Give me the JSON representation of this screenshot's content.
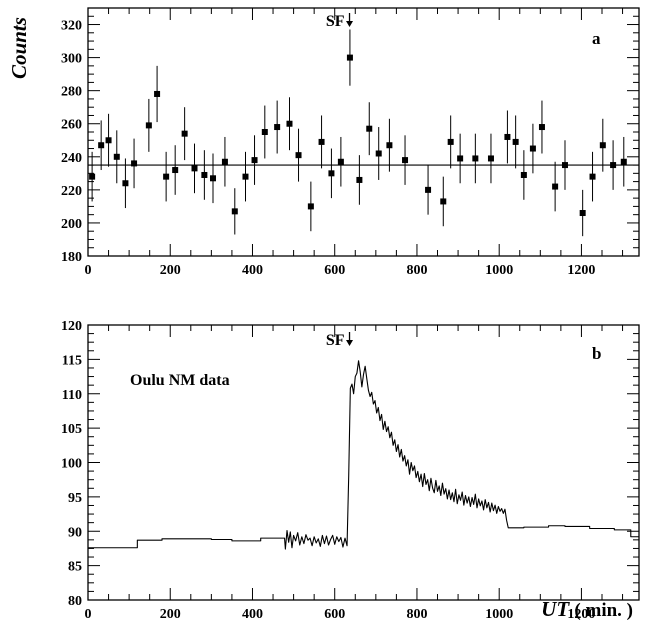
{
  "chart_data": [
    {
      "panel": "a",
      "type": "scatter",
      "title": "",
      "xlabel": "",
      "ylabel": "Counts",
      "xlim": [
        0,
        1340
      ],
      "ylim": [
        180,
        330
      ],
      "xticks": [
        0,
        200,
        400,
        600,
        800,
        1000,
        1200
      ],
      "yticks": [
        180,
        200,
        220,
        240,
        260,
        280,
        300,
        320
      ],
      "xtick_labels": [
        "0",
        "200",
        "400",
        "600",
        "800",
        "1000",
        "1200"
      ],
      "ytick_labels": [
        "180",
        "200",
        "220",
        "240",
        "260",
        "280",
        "300",
        "320"
      ],
      "panel_label": "a",
      "annotation": {
        "text": "SF",
        "x": 636
      },
      "mean_line": 235,
      "grid": false,
      "series": [
        {
          "marker": "square",
          "x": [
            10,
            32,
            50,
            70,
            91,
            112,
            148,
            168,
            190,
            212,
            235,
            259,
            283,
            304,
            333,
            357,
            383,
            405,
            430,
            460,
            490,
            512,
            542,
            568,
            592,
            615,
            637,
            660,
            684,
            707,
            733,
            771,
            827,
            864,
            882,
            905,
            942,
            980,
            1020,
            1040,
            1060,
            1082,
            1104,
            1136,
            1160,
            1203,
            1227,
            1252,
            1277,
            1303
          ],
          "y": [
            228,
            247,
            250,
            240,
            224,
            236,
            259,
            278,
            228,
            232,
            254,
            233,
            229,
            227,
            237,
            207,
            228,
            238,
            255,
            258,
            260,
            241,
            210,
            249,
            230,
            237,
            300,
            226,
            257,
            242,
            247,
            238,
            220,
            213,
            249,
            239,
            239,
            239,
            252,
            249,
            229,
            245,
            258,
            222,
            235,
            206,
            228,
            247,
            235,
            237
          ],
          "err": [
            15,
            15,
            16,
            16,
            15,
            15,
            16,
            17,
            15,
            15,
            16,
            15,
            15,
            15,
            15,
            14,
            15,
            15,
            16,
            16,
            16,
            16,
            15,
            16,
            15,
            15,
            17,
            15,
            16,
            16,
            16,
            15,
            15,
            15,
            16,
            15,
            15,
            15,
            16,
            16,
            15,
            15,
            16,
            15,
            15,
            14,
            15,
            16,
            15,
            15
          ]
        }
      ]
    },
    {
      "panel": "b",
      "type": "line",
      "title": "",
      "xlabel": "UT ( min. )",
      "xlabel_italic": "UT",
      "xlabel_rest": "( min. )",
      "ylabel": "",
      "xlim": [
        0,
        1340
      ],
      "ylim": [
        80,
        120
      ],
      "xticks": [
        0,
        200,
        400,
        600,
        800,
        1000,
        1200
      ],
      "yticks": [
        80,
        85,
        90,
        95,
        100,
        105,
        110,
        115,
        120
      ],
      "xtick_labels": [
        "0",
        "200",
        "400",
        "600",
        "800",
        "1000",
        "1200"
      ],
      "ytick_labels": [
        "80",
        "85",
        "90",
        "95",
        "100",
        "105",
        "110",
        "115",
        "120"
      ],
      "panel_label": "b",
      "text_label": "Oulu NM data",
      "annotation": {
        "text": "SF",
        "x": 636
      },
      "grid": false,
      "series": [
        {
          "x": [
            0,
            120,
            120,
            180,
            180,
            300,
            300,
            350,
            350,
            420,
            420,
            478,
            480,
            484,
            488,
            492,
            496,
            500,
            505,
            510,
            515,
            520,
            525,
            530,
            535,
            540,
            545,
            550,
            555,
            560,
            565,
            570,
            575,
            580,
            585,
            590,
            595,
            600,
            605,
            610,
            615,
            620,
            625,
            630,
            634,
            638,
            642,
            646,
            650,
            654,
            658,
            662,
            666,
            670,
            674,
            678,
            682,
            686,
            690,
            694,
            698,
            702,
            706,
            710,
            714,
            718,
            722,
            726,
            730,
            734,
            738,
            742,
            746,
            750,
            754,
            758,
            762,
            766,
            770,
            774,
            778,
            782,
            786,
            790,
            794,
            798,
            802,
            806,
            810,
            814,
            818,
            822,
            826,
            830,
            834,
            838,
            842,
            846,
            850,
            854,
            858,
            862,
            866,
            870,
            874,
            878,
            882,
            886,
            890,
            894,
            898,
            902,
            906,
            910,
            914,
            918,
            922,
            926,
            930,
            934,
            938,
            942,
            946,
            950,
            954,
            958,
            962,
            966,
            970,
            974,
            978,
            982,
            986,
            990,
            994,
            998,
            1002,
            1006,
            1010,
            1014,
            1018,
            1022,
            1060,
            1060,
            1120,
            1120,
            1160,
            1160,
            1220,
            1220,
            1280,
            1280,
            1320,
            1320,
            1340
          ],
          "y": [
            87.6,
            87.6,
            88.7,
            88.7,
            88.9,
            88.9,
            88.8,
            88.8,
            88.6,
            88.6,
            89.0,
            89.0,
            87.4,
            90.1,
            88.4,
            89.9,
            87.6,
            89.4,
            88.6,
            89.8,
            88.0,
            89.2,
            88.2,
            89.5,
            88.7,
            89.0,
            87.9,
            89.2,
            88.3,
            88.9,
            87.8,
            89.4,
            88.2,
            89.3,
            88.0,
            88.8,
            89.4,
            88.1,
            89.2,
            88.5,
            89.1,
            87.7,
            89.0,
            87.9,
            98.0,
            110.8,
            111.4,
            110.0,
            112.5,
            113.0,
            114.8,
            113.2,
            111.0,
            112.8,
            114.0,
            112.2,
            110.5,
            109.6,
            110.2,
            108.5,
            109.0,
            107.2,
            108.0,
            106.1,
            107.0,
            104.8,
            106.0,
            104.5,
            105.2,
            103.6,
            104.4,
            102.5,
            103.3,
            101.6,
            102.6,
            100.8,
            101.9,
            100.2,
            101.0,
            99.5,
            100.4,
            98.3,
            100.0,
            98.8,
            99.5,
            97.8,
            98.7,
            97.2,
            98.3,
            96.5,
            98.4,
            96.8,
            97.5,
            95.9,
            97.7,
            96.3,
            95.6,
            97.4,
            95.8,
            96.6,
            95.2,
            97.0,
            95.4,
            96.2,
            94.7,
            96.0,
            94.6,
            95.6,
            94.3,
            96.1,
            94.0,
            95.3,
            94.5,
            95.7,
            93.8,
            95.2,
            94.1,
            95.0,
            93.6,
            94.9,
            93.9,
            95.4,
            93.4,
            94.7,
            93.7,
            94.4,
            93.1,
            94.6,
            93.4,
            94.2,
            92.8,
            94.1,
            93.0,
            93.8,
            92.6,
            93.6,
            92.9,
            93.3,
            92.6,
            93.2,
            91.6,
            90.5,
            90.5,
            90.6,
            90.6,
            90.8,
            90.8,
            90.7,
            90.7,
            90.4,
            90.4,
            90.2,
            90.2,
            89.2,
            89.2
          ]
        }
      ]
    }
  ]
}
